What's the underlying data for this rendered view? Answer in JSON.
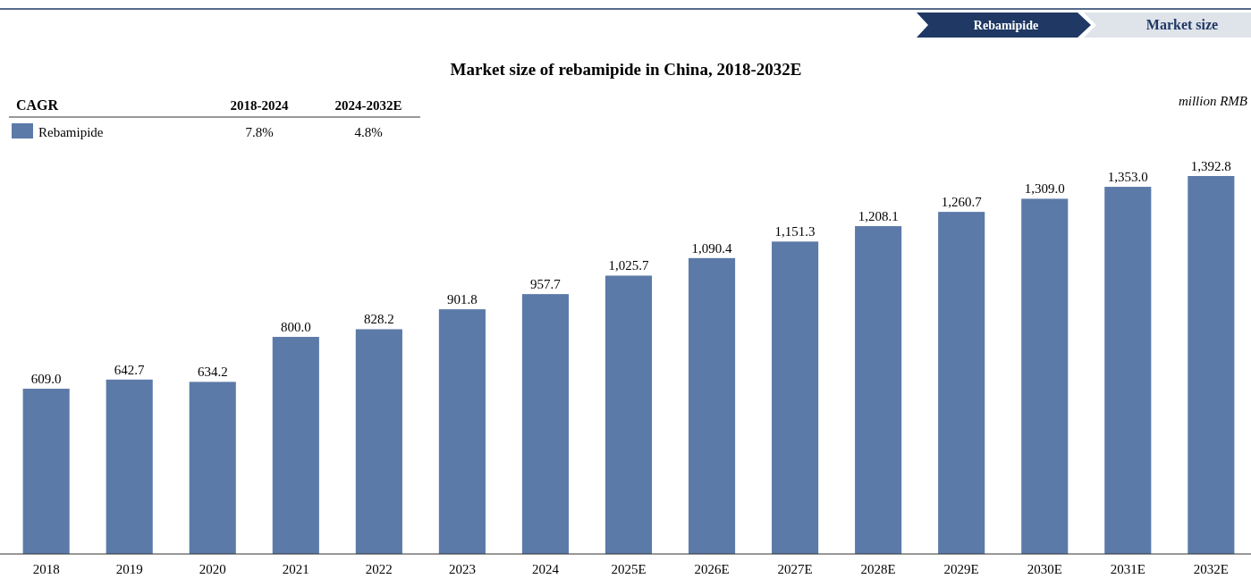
{
  "chart_data": {
    "type": "bar",
    "title": "Market size of rebamipide in China, 2018-2032E",
    "categories": [
      "2018",
      "2019",
      "2020",
      "2021",
      "2022",
      "2023",
      "2024",
      "2025E",
      "2026E",
      "2027E",
      "2028E",
      "2029E",
      "2030E",
      "2031E",
      "2032E"
    ],
    "series": [
      {
        "name": "Rebamipide",
        "color": "#5b7aa8",
        "values": [
          609.0,
          642.7,
          634.2,
          800.0,
          828.2,
          901.8,
          957.7,
          1025.7,
          1090.4,
          1151.3,
          1208.1,
          1260.7,
          1309.0,
          1353.0,
          1392.8
        ],
        "value_labels": [
          "609.0",
          "642.7",
          "634.2",
          "800.0",
          "828.2",
          "901.8",
          "957.7",
          "1,025.7",
          "1,090.4",
          "1,151.3",
          "1,208.1",
          "1,260.7",
          "1,309.0",
          "1,353.0",
          "1,392.8"
        ]
      }
    ],
    "annotations": [
      "Rebamipide",
      "Market size",
      "CAGR",
      "2018-2024",
      "2024-2032E",
      "7.8%",
      "4.8%",
      "million RMB"
    ],
    "legend": "top left"
  }
}
